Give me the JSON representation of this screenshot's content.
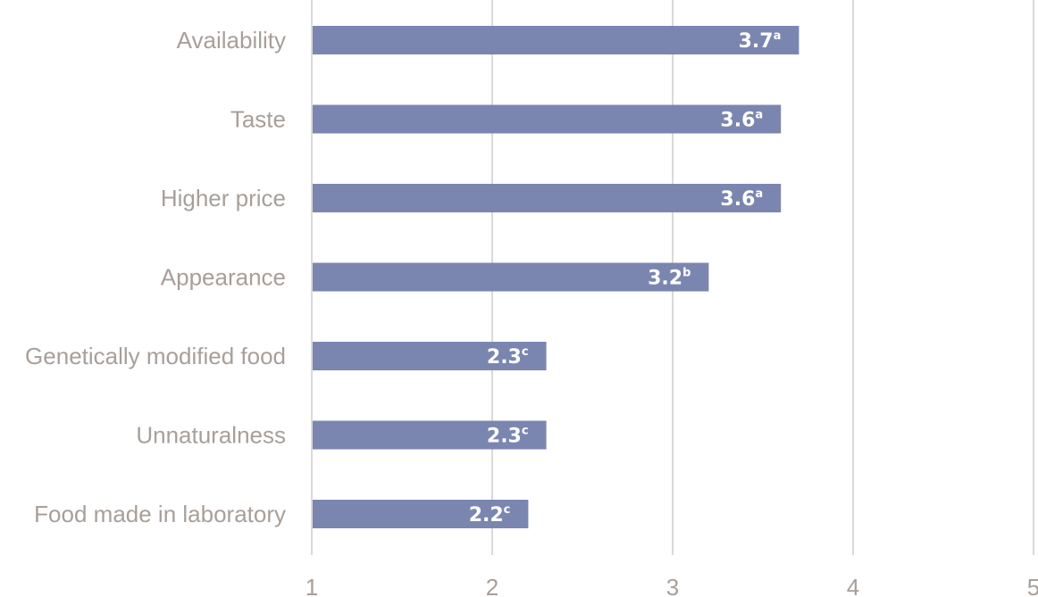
{
  "chart_data": {
    "type": "bar",
    "orientation": "horizontal",
    "categories": [
      "Availability",
      "Taste",
      "Higher price",
      "Appearance",
      "Genetically modified food",
      "Unnaturalness",
      "Food made in laboratory"
    ],
    "values": [
      3.7,
      3.6,
      3.6,
      3.2,
      2.3,
      2.3,
      2.2
    ],
    "value_labels": [
      "3.7",
      "3.6",
      "3.6",
      "3.2",
      "2.3",
      "2.3",
      "2.2"
    ],
    "superscripts": [
      "a",
      "a",
      "a",
      "b",
      "c",
      "c",
      "c"
    ],
    "xlim": [
      1,
      5
    ],
    "xticks": [
      "1",
      "2",
      "3",
      "4",
      "5"
    ],
    "title": "",
    "xlabel": "",
    "ylabel": "",
    "grid": "vertical",
    "bar_color": "#7b86b0",
    "grid_color": "#d9d9d9",
    "label_color": "#a89f99"
  }
}
